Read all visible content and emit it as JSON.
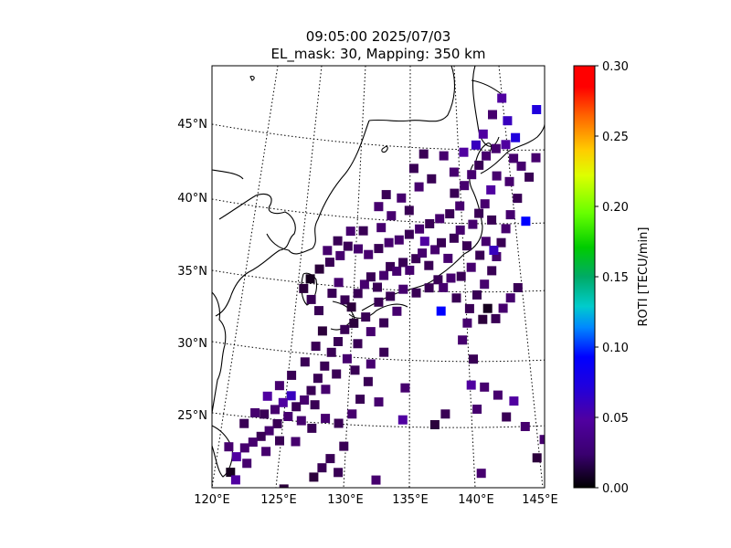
{
  "title": {
    "time": "09:05:00 2025/07/03",
    "params": "EL_mask: 30, Mapping: 350 km"
  },
  "chart_data": {
    "type": "heatmap",
    "projection": "map (Lambert-style conic), coastlines of East Asia / Japan",
    "lon_range": [
      120,
      145
    ],
    "lat_range": [
      20,
      49
    ],
    "x_tick_labels": [
      "120°E",
      "125°E",
      "130°E",
      "135°E",
      "140°E",
      "145°E"
    ],
    "y_tick_labels": [
      "25°N",
      "30°N",
      "35°N",
      "40°N",
      "45°N"
    ],
    "grid": true,
    "colorbar": {
      "label": "ROTI [TECU/min]",
      "range": [
        0,
        0.3
      ],
      "ticks": [
        "0.00",
        "0.05",
        "0.10",
        "0.15",
        "0.20",
        "0.25",
        "0.30"
      ],
      "colormap": "nipy_spectral-like (black → purple → blue → cyan → green → yellow → red)"
    },
    "points": [
      [
        129.0,
        33.5,
        0.03
      ],
      [
        129.5,
        34.2,
        0.04
      ],
      [
        130.0,
        33.0,
        0.03
      ],
      [
        130.5,
        32.5,
        0.02
      ],
      [
        131.0,
        33.4,
        0.03
      ],
      [
        131.5,
        34.0,
        0.04
      ],
      [
        132.0,
        34.5,
        0.03
      ],
      [
        132.5,
        33.8,
        0.03
      ],
      [
        133.0,
        34.6,
        0.04
      ],
      [
        133.5,
        35.2,
        0.03
      ],
      [
        134.0,
        34.9,
        0.04
      ],
      [
        134.5,
        35.5,
        0.03
      ],
      [
        135.0,
        35.0,
        0.04
      ],
      [
        135.5,
        35.8,
        0.03
      ],
      [
        136.0,
        36.2,
        0.04
      ],
      [
        136.5,
        35.4,
        0.03
      ],
      [
        137.0,
        36.5,
        0.04
      ],
      [
        137.5,
        37.0,
        0.03
      ],
      [
        138.0,
        36.0,
        0.04
      ],
      [
        138.5,
        37.4,
        0.03
      ],
      [
        139.0,
        38.0,
        0.04
      ],
      [
        139.5,
        37.0,
        0.03
      ],
      [
        140.0,
        38.5,
        0.04
      ],
      [
        140.5,
        39.3,
        0.03
      ],
      [
        141.0,
        40.0,
        0.04
      ],
      [
        141.5,
        41.0,
        0.05
      ],
      [
        142.0,
        42.0,
        0.04
      ],
      [
        141.5,
        39.0,
        0.03
      ],
      [
        141.0,
        37.5,
        0.04
      ],
      [
        140.5,
        36.5,
        0.03
      ],
      [
        139.8,
        35.6,
        0.04
      ],
      [
        139.0,
        34.9,
        0.03
      ],
      [
        138.2,
        34.7,
        0.04
      ],
      [
        137.2,
        34.5,
        0.03
      ],
      [
        136.5,
        33.9,
        0.03
      ],
      [
        135.5,
        33.5,
        0.03
      ],
      [
        134.5,
        33.7,
        0.04
      ],
      [
        133.5,
        33.2,
        0.03
      ],
      [
        132.6,
        32.8,
        0.03
      ],
      [
        131.6,
        31.8,
        0.03
      ],
      [
        130.7,
        31.4,
        0.02
      ],
      [
        130.0,
        31.0,
        0.03
      ],
      [
        129.5,
        30.2,
        0.03
      ],
      [
        129.0,
        29.5,
        0.03
      ],
      [
        128.5,
        28.6,
        0.03
      ],
      [
        128.0,
        27.8,
        0.03
      ],
      [
        127.5,
        27.0,
        0.03
      ],
      [
        127.0,
        26.4,
        0.04
      ],
      [
        126.4,
        26.0,
        0.03
      ],
      [
        125.8,
        25.4,
        0.04
      ],
      [
        125.0,
        25.0,
        0.03
      ],
      [
        124.4,
        24.6,
        0.04
      ],
      [
        123.8,
        24.3,
        0.03
      ],
      [
        123.2,
        24.0,
        0.04
      ],
      [
        122.6,
        23.7,
        0.04
      ],
      [
        122.0,
        23.2,
        0.05
      ],
      [
        121.4,
        24.0,
        0.04
      ],
      [
        122.5,
        25.4,
        0.03
      ],
      [
        123.3,
        26.0,
        0.04
      ],
      [
        124.2,
        27.0,
        0.05
      ],
      [
        125.1,
        27.6,
        0.04
      ],
      [
        126.0,
        28.2,
        0.03
      ],
      [
        127.0,
        29.0,
        0.03
      ],
      [
        127.8,
        30.0,
        0.03
      ],
      [
        128.3,
        31.0,
        0.02
      ],
      [
        128.0,
        32.4,
        0.03
      ],
      [
        127.4,
        33.2,
        0.03
      ],
      [
        126.8,
        34.0,
        0.02
      ],
      [
        127.3,
        34.6,
        0.01
      ],
      [
        128.0,
        35.2,
        0.02
      ],
      [
        128.8,
        35.6,
        0.03
      ],
      [
        129.6,
        36.0,
        0.04
      ],
      [
        130.2,
        36.6,
        0.03
      ],
      [
        131.0,
        36.4,
        0.04
      ],
      [
        131.8,
        36.0,
        0.04
      ],
      [
        132.6,
        36.4,
        0.03
      ],
      [
        133.4,
        36.8,
        0.04
      ],
      [
        134.2,
        37.0,
        0.04
      ],
      [
        135.0,
        37.4,
        0.03
      ],
      [
        135.8,
        37.8,
        0.04
      ],
      [
        136.6,
        38.2,
        0.03
      ],
      [
        137.4,
        38.6,
        0.04
      ],
      [
        138.2,
        39.0,
        0.03
      ],
      [
        139.0,
        39.6,
        0.04
      ],
      [
        138.6,
        40.4,
        0.03
      ],
      [
        139.4,
        41.0,
        0.04
      ],
      [
        140.0,
        41.8,
        0.04
      ],
      [
        140.6,
        42.5,
        0.03
      ],
      [
        141.2,
        43.2,
        0.04
      ],
      [
        142.0,
        43.8,
        0.04
      ],
      [
        142.8,
        44.2,
        0.05
      ],
      [
        143.4,
        43.4,
        0.04
      ],
      [
        144.0,
        43.0,
        0.04
      ],
      [
        144.6,
        42.4,
        0.03
      ],
      [
        145.2,
        43.8,
        0.04
      ],
      [
        143.0,
        41.8,
        0.04
      ],
      [
        143.6,
        40.8,
        0.03
      ],
      [
        143.0,
        39.6,
        0.04
      ],
      [
        142.6,
        38.6,
        0.04
      ],
      [
        142.2,
        37.6,
        0.03
      ],
      [
        141.8,
        36.6,
        0.04
      ],
      [
        141.4,
        35.6,
        0.03
      ],
      [
        140.8,
        34.6,
        0.04
      ],
      [
        140.2,
        33.8,
        0.03
      ],
      [
        139.6,
        32.8,
        0.03
      ],
      [
        139.4,
        31.8,
        0.04
      ],
      [
        140.6,
        32.2,
        0.02
      ],
      [
        141.0,
        33.0,
        0.01
      ],
      [
        141.6,
        32.4,
        0.03
      ],
      [
        142.2,
        33.2,
        0.04
      ],
      [
        142.8,
        34.0,
        0.04
      ],
      [
        143.4,
        34.8,
        0.03
      ],
      [
        139.0,
        30.6,
        0.04
      ],
      [
        139.8,
        29.4,
        0.03
      ],
      [
        139.6,
        27.6,
        0.05
      ],
      [
        140.6,
        27.6,
        0.04
      ],
      [
        141.6,
        27.2,
        0.04
      ],
      [
        142.8,
        27.0,
        0.05
      ],
      [
        140.0,
        26.0,
        0.04
      ],
      [
        142.2,
        25.8,
        0.03
      ],
      [
        143.6,
        25.4,
        0.04
      ],
      [
        137.6,
        25.4,
        0.03
      ],
      [
        136.8,
        24.6,
        0.02
      ],
      [
        134.4,
        24.8,
        0.05
      ],
      [
        134.6,
        27.0,
        0.04
      ],
      [
        132.6,
        26.0,
        0.04
      ],
      [
        131.2,
        26.2,
        0.03
      ],
      [
        130.6,
        25.2,
        0.04
      ],
      [
        129.6,
        24.6,
        0.03
      ],
      [
        128.6,
        25.0,
        0.04
      ],
      [
        127.6,
        24.4,
        0.03
      ],
      [
        126.4,
        23.6,
        0.04
      ],
      [
        125.2,
        23.8,
        0.03
      ],
      [
        124.2,
        23.2,
        0.04
      ],
      [
        122.8,
        22.6,
        0.04
      ],
      [
        121.6,
        22.2,
        0.01
      ],
      [
        122.0,
        21.6,
        0.05
      ],
      [
        130.0,
        23.0,
        0.03
      ],
      [
        129.0,
        22.2,
        0.03
      ],
      [
        128.4,
        21.6,
        0.03
      ],
      [
        127.8,
        21.0,
        0.02
      ],
      [
        129.6,
        21.2,
        0.03
      ],
      [
        132.4,
        20.6,
        0.04
      ],
      [
        125.6,
        20.4,
        0.02
      ],
      [
        124.0,
        20.2,
        0.03
      ],
      [
        140.2,
        21.6,
        0.04
      ],
      [
        144.4,
        23.4,
        0.02
      ],
      [
        145.0,
        24.8,
        0.04
      ],
      [
        137.4,
        32.4,
        0.09
      ],
      [
        141.6,
        37.0,
        0.06
      ],
      [
        144.2,
        39.4,
        0.09
      ],
      [
        143.6,
        44.8,
        0.07
      ],
      [
        145.4,
        47.0,
        0.07
      ],
      [
        142.6,
        47.2,
        0.05
      ],
      [
        141.0,
        44.6,
        0.05
      ],
      [
        140.4,
        43.8,
        0.06
      ],
      [
        143.0,
        45.8,
        0.06
      ],
      [
        141.8,
        46.0,
        0.04
      ],
      [
        139.4,
        43.2,
        0.05
      ],
      [
        137.8,
        42.8,
        0.04
      ],
      [
        136.8,
        41.2,
        0.03
      ],
      [
        135.8,
        40.6,
        0.04
      ],
      [
        135.0,
        39.0,
        0.03
      ],
      [
        133.6,
        38.6,
        0.04
      ],
      [
        132.8,
        37.8,
        0.04
      ],
      [
        131.4,
        37.6,
        0.03
      ],
      [
        130.4,
        37.6,
        0.04
      ],
      [
        129.4,
        37.0,
        0.03
      ],
      [
        128.6,
        36.4,
        0.04
      ],
      [
        136.2,
        37.0,
        0.05
      ],
      [
        137.6,
        34.0,
        0.04
      ],
      [
        138.6,
        33.4,
        0.03
      ],
      [
        134.0,
        32.2,
        0.04
      ],
      [
        133.0,
        31.4,
        0.03
      ],
      [
        132.0,
        30.8,
        0.04
      ],
      [
        131.0,
        30.0,
        0.03
      ],
      [
        130.2,
        29.0,
        0.04
      ],
      [
        129.4,
        28.0,
        0.03
      ],
      [
        128.6,
        27.0,
        0.04
      ],
      [
        127.8,
        26.0,
        0.03
      ],
      [
        126.8,
        25.0,
        0.04
      ],
      [
        130.8,
        28.2,
        0.03
      ],
      [
        132.0,
        28.6,
        0.04
      ],
      [
        133.0,
        29.4,
        0.03
      ],
      [
        131.8,
        27.4,
        0.03
      ],
      [
        126.0,
        26.8,
        0.06
      ],
      [
        125.4,
        26.4,
        0.05
      ],
      [
        124.8,
        26.0,
        0.04
      ],
      [
        124.0,
        25.8,
        0.03
      ],
      [
        135.4,
        41.8,
        0.03
      ],
      [
        138.6,
        41.8,
        0.04
      ],
      [
        136.2,
        42.8,
        0.03
      ],
      [
        134.4,
        39.8,
        0.04
      ],
      [
        133.2,
        40.0,
        0.03
      ],
      [
        132.6,
        39.2,
        0.04
      ]
    ]
  }
}
